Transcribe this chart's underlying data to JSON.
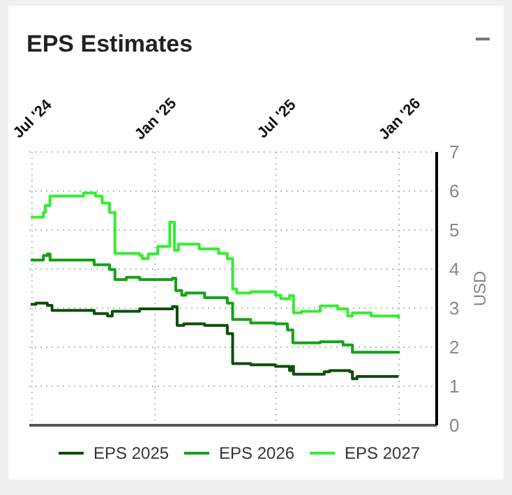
{
  "chart_data": {
    "type": "step",
    "title": "EPS Estimates",
    "ylabel": "USD",
    "xlim": [
      "2024-06-27",
      "2026-02-26"
    ],
    "xticks": [
      {
        "value": "2024-07-01",
        "label": "Jul '24"
      },
      {
        "value": "2025-01-01",
        "label": "Jan '25"
      },
      {
        "value": "2025-07-01",
        "label": "Jul '25"
      },
      {
        "value": "2026-01-01",
        "label": "Jan '26"
      }
    ],
    "ylim": [
      0,
      7
    ],
    "yticks": [
      0,
      1,
      2,
      3,
      4,
      5,
      6,
      7
    ],
    "grid": true,
    "legend": "bottom",
    "series": [
      {
        "name": "EPS 2025",
        "color": "#0d4d0d",
        "x": [
          "2024-06-29",
          "2024-07-07",
          "2024-07-24",
          "2024-07-31",
          "2024-10-02",
          "2024-10-22",
          "2024-10-29",
          "2024-12-09",
          "2025-01-27",
          "2025-02-03",
          "2025-02-13",
          "2025-03-16",
          "2025-04-19",
          "2025-04-27",
          "2025-05-24",
          "2025-06-30",
          "2025-07-21",
          "2025-07-25",
          "2025-07-27",
          "2025-09-11",
          "2025-09-19",
          "2025-10-19",
          "2025-10-23",
          "2025-10-30",
          "2025-12-31"
        ],
        "values": [
          3.1,
          3.13,
          3.07,
          2.94,
          2.86,
          2.8,
          2.92,
          2.98,
          3.04,
          2.56,
          2.6,
          2.56,
          2.35,
          1.58,
          1.55,
          1.51,
          1.4,
          1.51,
          1.31,
          1.37,
          1.4,
          1.37,
          1.19,
          1.25,
          1.25
        ]
      },
      {
        "name": "EPS 2026",
        "color": "#16a016",
        "x": [
          "2024-06-29",
          "2024-07-18",
          "2024-07-24",
          "2024-07-28",
          "2024-10-02",
          "2024-10-25",
          "2024-11-02",
          "2024-11-19",
          "2024-12-09",
          "2025-01-27",
          "2025-02-01",
          "2025-02-10",
          "2025-02-16",
          "2025-03-16",
          "2025-04-19",
          "2025-04-27",
          "2025-05-24",
          "2025-06-30",
          "2025-07-18",
          "2025-07-26",
          "2025-09-05",
          "2025-10-09",
          "2025-10-23",
          "2025-12-31"
        ],
        "values": [
          4.23,
          4.35,
          4.39,
          4.23,
          4.11,
          3.99,
          3.73,
          3.79,
          3.73,
          3.77,
          3.45,
          3.33,
          3.39,
          3.27,
          3.13,
          2.71,
          2.62,
          2.6,
          2.44,
          2.11,
          2.14,
          2.06,
          1.87,
          1.9
        ]
      },
      {
        "name": "EPS 2027",
        "color": "#33ee33",
        "x": [
          "2024-06-29",
          "2024-07-18",
          "2024-07-21",
          "2024-07-28",
          "2024-09-16",
          "2024-10-04",
          "2024-10-14",
          "2024-10-25",
          "2024-11-02",
          "2024-12-09",
          "2024-12-13",
          "2024-12-22",
          "2025-01-05",
          "2025-01-23",
          "2025-01-30",
          "2025-02-05",
          "2025-03-08",
          "2025-04-06",
          "2025-04-19",
          "2025-04-27",
          "2025-05-03",
          "2025-05-24",
          "2025-06-30",
          "2025-07-08",
          "2025-07-21",
          "2025-07-27",
          "2025-08-08",
          "2025-09-05",
          "2025-10-01",
          "2025-10-16",
          "2025-10-23",
          "2025-11-20",
          "2025-12-31"
        ],
        "values": [
          5.33,
          5.45,
          5.63,
          5.87,
          5.95,
          5.87,
          5.69,
          5.45,
          4.4,
          4.35,
          4.27,
          4.39,
          4.58,
          5.2,
          4.48,
          4.64,
          4.52,
          4.4,
          4.27,
          3.49,
          3.39,
          3.42,
          3.33,
          3.24,
          3.32,
          2.88,
          2.92,
          3.06,
          2.98,
          2.8,
          2.88,
          2.8,
          2.73
        ]
      }
    ]
  }
}
